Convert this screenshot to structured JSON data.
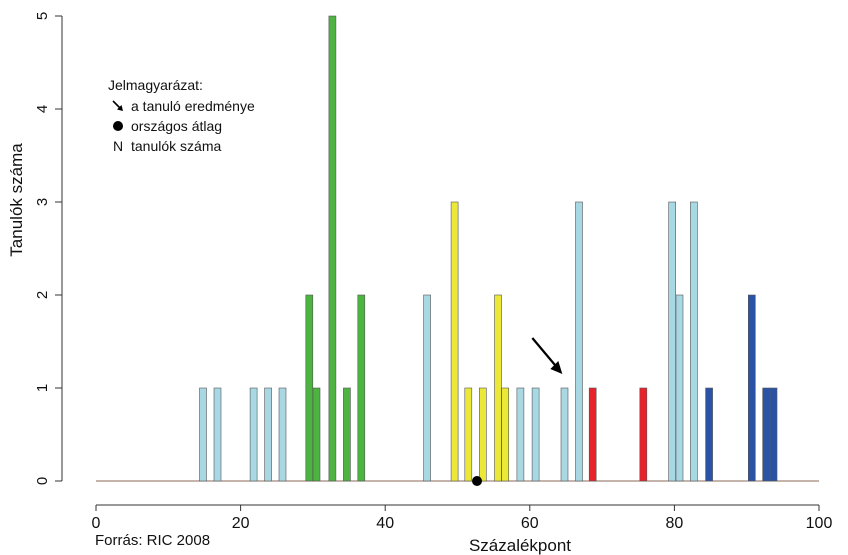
{
  "chart_data": {
    "type": "bar",
    "xlabel": "Százalékpont",
    "ylabel": "Tanulók száma",
    "xlim": [
      0,
      100
    ],
    "ylim": [
      0,
      5
    ],
    "xticks": [
      0,
      20,
      40,
      60,
      80,
      100
    ],
    "yticks": [
      0,
      1,
      2,
      3,
      4,
      5
    ],
    "bars": [
      {
        "x": 14.8,
        "value": 1,
        "color": "#a8d8e4"
      },
      {
        "x": 16.8,
        "value": 1,
        "color": "#a8d8e4"
      },
      {
        "x": 21.8,
        "value": 1,
        "color": "#a8d8e4"
      },
      {
        "x": 23.8,
        "value": 1,
        "color": "#a8d8e4"
      },
      {
        "x": 25.8,
        "value": 1,
        "color": "#a8d8e4"
      },
      {
        "x": 29.5,
        "value": 2,
        "color": "#4db341"
      },
      {
        "x": 30.5,
        "value": 1,
        "color": "#4db341"
      },
      {
        "x": 32.7,
        "value": 5,
        "color": "#4db341"
      },
      {
        "x": 34.7,
        "value": 1,
        "color": "#4db341"
      },
      {
        "x": 36.7,
        "value": 2,
        "color": "#4db341"
      },
      {
        "x": 45.8,
        "value": 2,
        "color": "#a8d8e4"
      },
      {
        "x": 49.6,
        "value": 3,
        "color": "#ece838"
      },
      {
        "x": 51.5,
        "value": 1,
        "color": "#ece838"
      },
      {
        "x": 53.5,
        "value": 1,
        "color": "#ece838"
      },
      {
        "x": 55.6,
        "value": 2,
        "color": "#ece838"
      },
      {
        "x": 56.6,
        "value": 1,
        "color": "#ece838"
      },
      {
        "x": 58.7,
        "value": 1,
        "color": "#a8d8e4"
      },
      {
        "x": 60.8,
        "value": 1,
        "color": "#a8d8e4"
      },
      {
        "x": 64.8,
        "value": 1,
        "color": "#a8d8e4"
      },
      {
        "x": 66.8,
        "value": 3,
        "color": "#a8d8e4"
      },
      {
        "x": 68.7,
        "value": 1,
        "color": "#e8212b"
      },
      {
        "x": 75.7,
        "value": 1,
        "color": "#e8212b"
      },
      {
        "x": 79.7,
        "value": 3,
        "color": "#a8d8e4"
      },
      {
        "x": 80.7,
        "value": 2,
        "color": "#a8d8e4"
      },
      {
        "x": 82.7,
        "value": 3,
        "color": "#a8d8e4"
      },
      {
        "x": 84.8,
        "value": 1,
        "color": "#2a53a5"
      },
      {
        "x": 90.7,
        "value": 2,
        "color": "#2a53a5"
      },
      {
        "x": 92.7,
        "value": 1,
        "color": "#2a53a5"
      },
      {
        "x": 93.7,
        "value": 1,
        "color": "#2a53a5"
      }
    ],
    "national_average": 52.7,
    "student_result": 64.5
  },
  "legend": {
    "title": "Jelmagyarázat:",
    "items": [
      {
        "symbol": "arrow-icon",
        "label": "a tanuló eredménye"
      },
      {
        "symbol": "dot-icon",
        "label": "országos átlag"
      },
      {
        "symbol": "N",
        "label": "tanulók száma"
      }
    ]
  },
  "source": "Forrás: RIC 2008"
}
